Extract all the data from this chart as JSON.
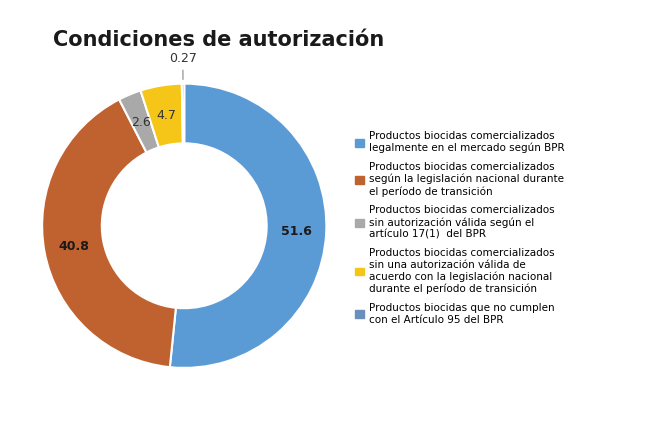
{
  "title": "Condiciones de autorización",
  "values": [
    51.6,
    40.8,
    2.6,
    4.7,
    0.27
  ],
  "labels": [
    "51.6",
    "40.8",
    "2.6",
    "4.7",
    "0.27"
  ],
  "colors": [
    "#5B9BD5",
    "#C0622F",
    "#A9A9A9",
    "#F5C518",
    "#6B8FBD"
  ],
  "legend_labels": [
    "Productos biocidas comercializados\nlegalmente en el mercado según BPR",
    "Productos biocidas comercializados\nsegún la legislación nacional durante\nel período de transición",
    "Productos biocidas comercializados\nsin autorización válida según el\nartículo 17(1)  del BPR",
    "Productos biocidas comercializados\nsin una autorización válida de\nacuerdo con la legislación nacional\ndurante el período de transición",
    "Productos biocidas que no cumplen\ncon el Artículo 95 del BPR"
  ],
  "legend_colors": [
    "#5B9BD5",
    "#C0622F",
    "#A9A9A9",
    "#F5C518",
    "#6B8FBD"
  ],
  "background_color": "#FFFFFF",
  "title_fontsize": 15,
  "label_fontsize": 9,
  "legend_fontsize": 7.5,
  "startangle": 90,
  "donut_width": 0.42
}
